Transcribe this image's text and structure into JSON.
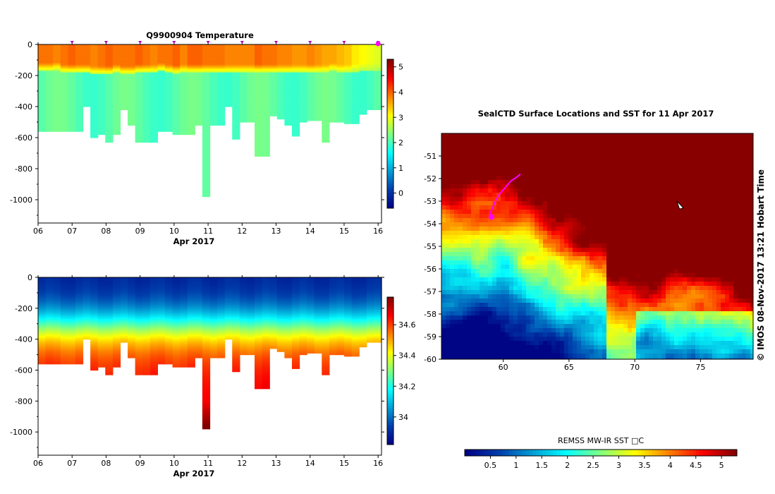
{
  "chart_data": [
    {
      "type": "heatmap",
      "title": "Q9900904  Temperature",
      "xlabel": "Apr 2017",
      "x_ticks": [
        "06",
        "07",
        "08",
        "09",
        "10",
        "11",
        "12",
        "13",
        "14",
        "15",
        "16"
      ],
      "y_ticks": [
        0,
        -200,
        -400,
        -600,
        -800,
        -1000
      ],
      "ylim": [
        -1150,
        0
      ],
      "xlim": [
        6.0,
        16.1
      ],
      "colorbar_ticks": [
        0,
        1,
        2,
        3,
        4,
        5
      ],
      "colorbar_range": [
        -0.6,
        5.3
      ],
      "mixed_layer_depth": [
        -140,
        -135,
        -150,
        -150,
        -150,
        -150,
        -160,
        -160,
        -160,
        -150,
        -160,
        -150,
        -150,
        -150,
        -140,
        -150,
        -155,
        -150,
        -150,
        -150,
        -150,
        -150,
        -150,
        -150,
        -150,
        -150,
        -150,
        -150,
        -150,
        -150,
        -150,
        -150,
        -150,
        -150,
        -150,
        -140,
        -150,
        -150,
        -145,
        -140,
        -140,
        -135
      ],
      "surface_temperature": [
        3.9,
        3.8,
        3.9,
        4.0,
        3.9,
        3.9,
        3.8,
        3.9,
        4.0,
        3.9,
        3.9,
        4.0,
        3.9,
        3.8,
        3.9,
        3.9,
        4.0,
        3.8,
        4.0,
        4.0,
        3.9,
        3.9,
        3.8,
        3.8,
        3.8,
        3.8,
        4.0,
        3.9,
        3.9,
        3.8,
        3.8,
        3.7,
        3.8,
        3.7,
        3.6,
        3.6,
        3.5,
        3.4,
        3.2,
        3.1,
        3.0,
        2.9
      ],
      "profile_bottom_depth": [
        -560,
        -560,
        -560,
        -560,
        -560,
        -560,
        -400,
        -600,
        -580,
        -630,
        -580,
        -420,
        -520,
        -630,
        -630,
        -630,
        -560,
        -560,
        -580,
        -580,
        -580,
        -520,
        -980,
        -520,
        -520,
        -400,
        -610,
        -500,
        -500,
        -720,
        -720,
        -460,
        -480,
        -520,
        -590,
        -500,
        -490,
        -490,
        -630,
        -500,
        -500,
        -510,
        -510,
        -450,
        -420,
        -420
      ],
      "markers_x": [
        7,
        8,
        9,
        10,
        11,
        12,
        13,
        14,
        15,
        16
      ]
    },
    {
      "type": "heatmap",
      "title": "",
      "xlabel": "Apr 2017",
      "x_ticks": [
        "06",
        "07",
        "08",
        "09",
        "10",
        "11",
        "12",
        "13",
        "14",
        "15",
        "16"
      ],
      "y_ticks": [
        0,
        -200,
        -400,
        -600,
        -800,
        -1000
      ],
      "ylim": [
        -1150,
        0
      ],
      "colorbar_ticks": [
        34.0,
        34.2,
        34.4,
        34.6
      ],
      "colorbar_labels": [
        "34",
        "34.2",
        "34.4",
        "34.6"
      ],
      "colorbar_range": [
        33.82,
        34.78
      ]
    },
    {
      "type": "heatmap",
      "title": "SealCTD Surface Locations and SST for 11 Apr 2017",
      "x_ticks": [
        "60",
        "65",
        "70",
        "75"
      ],
      "y_ticks": [
        "-51",
        "-52",
        "-53",
        "-54",
        "-55",
        "-56",
        "-57",
        "-58",
        "-59",
        "-60"
      ],
      "xlim": [
        55.3,
        79.0
      ],
      "ylim": [
        -60.0,
        -50.0
      ],
      "colorbar_label": "REMSS MW-IR SST □C",
      "colorbar_ticks": [
        "0.5",
        "1",
        "1.5",
        "2",
        "2.5",
        "3",
        "3.5",
        "4",
        "4.5",
        "5"
      ],
      "colorbar_range": [
        0.0,
        5.3
      ],
      "side_label": "© IMOS 08-Nov-2017 13:21 Hobart Time"
    }
  ]
}
